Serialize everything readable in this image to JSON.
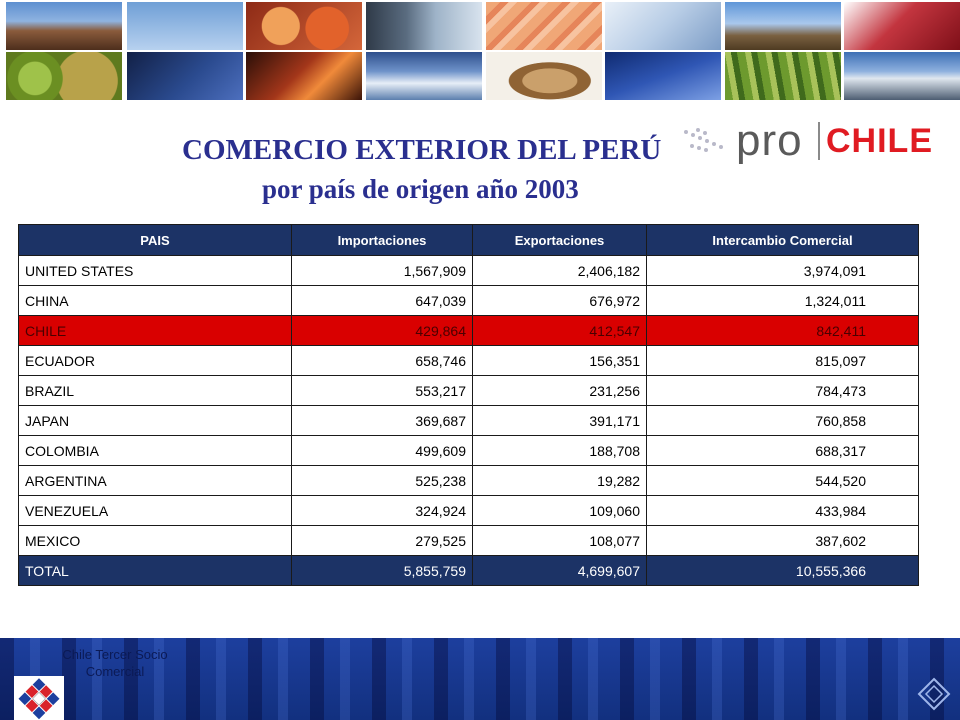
{
  "title": {
    "line1": "COMERCIO EXTERIOR DEL PERÚ",
    "line2": "por país de origen año 2003"
  },
  "logo": {
    "pro": "pro",
    "chile": "CHILE"
  },
  "colors": {
    "title": "#2a2f8f",
    "header_bg": "#1c3366",
    "highlight_row": "#d90000",
    "logo_red": "#e01b22",
    "footer_bg": "#1d3f9e"
  },
  "table": {
    "headers": [
      "PAIS",
      "Importaciones",
      "Exportaciones",
      "Intercambio Comercial"
    ],
    "rows": [
      {
        "pais": "UNITED STATES",
        "imp": "1,567,909",
        "exp": "2,406,182",
        "inter": "3,974,091"
      },
      {
        "pais": "CHINA",
        "imp": "647,039",
        "exp": "676,972",
        "inter": "1,324,011"
      },
      {
        "pais": "CHILE",
        "imp": "429,864",
        "exp": "412,547",
        "inter": "842,411"
      },
      {
        "pais": "ECUADOR",
        "imp": "658,746",
        "exp": "156,351",
        "inter": "815,097"
      },
      {
        "pais": "BRAZIL",
        "imp": "553,217",
        "exp": "231,256",
        "inter": "784,473"
      },
      {
        "pais": "JAPAN",
        "imp": "369,687",
        "exp": "391,171",
        "inter": "760,858"
      },
      {
        "pais": "COLOMBIA",
        "imp": "499,609",
        "exp": "188,708",
        "inter": "688,317"
      },
      {
        "pais": "ARGENTINA",
        "imp": "525,238",
        "exp": "19,282",
        "inter": "544,520"
      },
      {
        "pais": "VENEZUELA",
        "imp": "324,924",
        "exp": "109,060",
        "inter": "433,984"
      },
      {
        "pais": "MEXICO",
        "imp": "279,525",
        "exp": "108,077",
        "inter": "387,602"
      }
    ],
    "total": {
      "pais": "TOTAL",
      "imp": "5,855,759",
      "exp": "4,699,607",
      "inter": "10,555,366"
    }
  },
  "footer": {
    "text": "Chile Tercer Socio Comercial"
  }
}
